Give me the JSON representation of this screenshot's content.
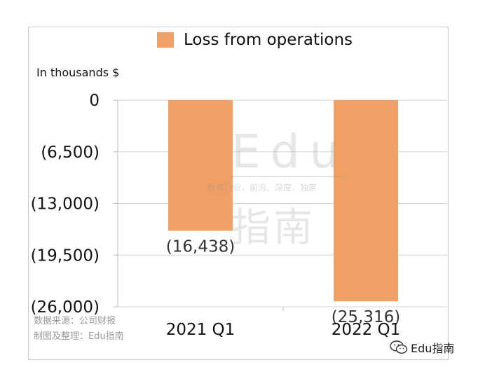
{
  "legend": {
    "label": "Loss from operations",
    "color": "#F0A065"
  },
  "unit_label": "In thousands $",
  "source": {
    "line1": "数据来源：公司财报",
    "line2": "制图及整理：Edu指南"
  },
  "watermark": {
    "edu": "Edu",
    "tagline": "教育行业，前沿、深度、独家",
    "cn": "指南"
  },
  "brand": {
    "label": "Edu指南",
    "icon": "wechat-icon"
  },
  "chart_data": {
    "type": "bar",
    "categories": [
      "2021 Q1",
      "2022 Q1"
    ],
    "series": [
      {
        "name": "Loss from operations",
        "values": [
          -16438,
          -25316
        ]
      }
    ],
    "data_labels": [
      "(16,438)",
      "(25,316)"
    ],
    "yticks": [
      0,
      -6500,
      -13000,
      -19500,
      -26000
    ],
    "ytick_labels": [
      "0",
      "(6,500)",
      "(13,000)",
      "(19,500)",
      "(26,000)"
    ],
    "ylim": [
      -26000,
      0
    ],
    "grid": true,
    "legend_position": "top",
    "bar_color": "#F0A065"
  }
}
